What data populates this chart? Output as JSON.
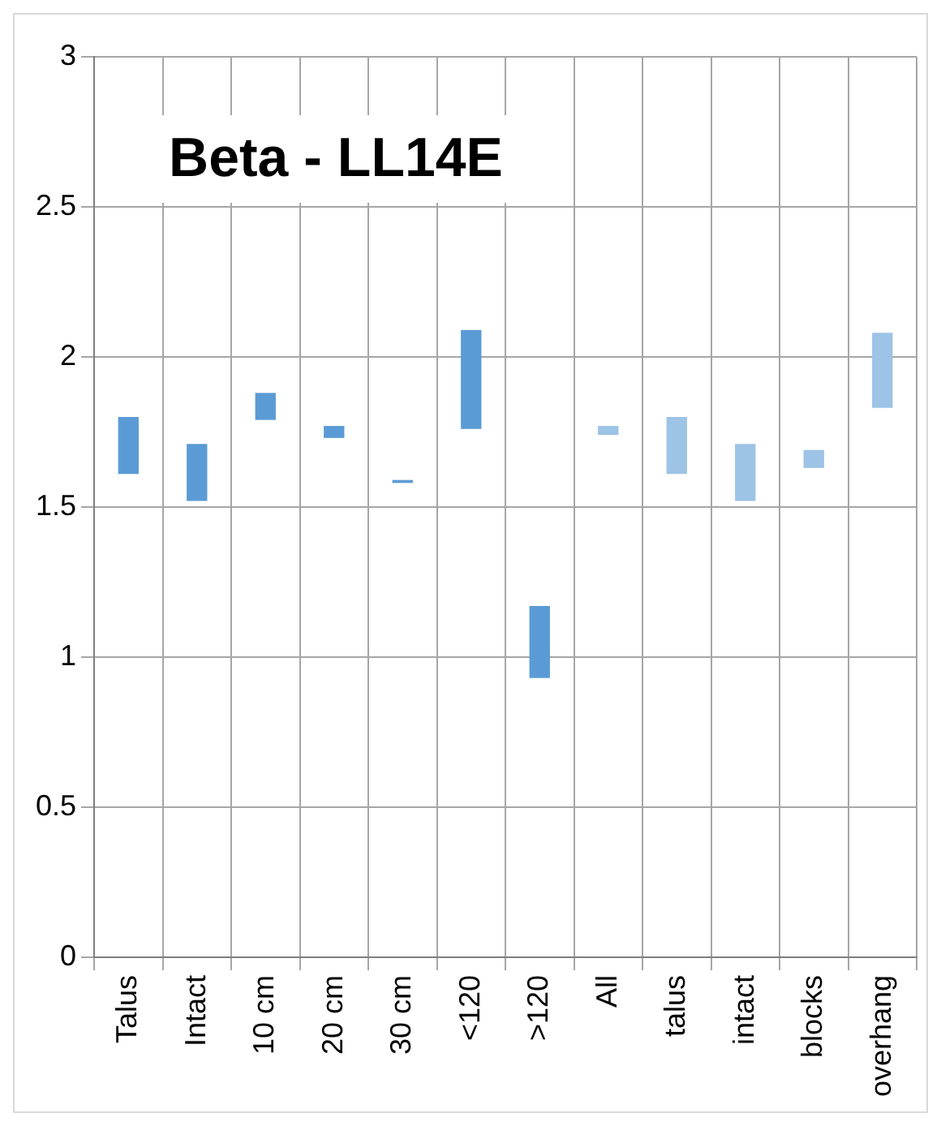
{
  "chart_data": {
    "type": "bar",
    "title": "Beta - LL14E",
    "categories": [
      "Talus",
      "Intact",
      "10 cm",
      "20 cm",
      "30 cm",
      "<120",
      ">120",
      "All",
      "talus",
      "intact",
      "blocks",
      "overhang"
    ],
    "base": [
      1.61,
      1.52,
      1.79,
      1.73,
      1.58,
      1.76,
      0.93,
      1.74,
      1.61,
      1.52,
      1.63,
      1.83
    ],
    "values": [
      0.19,
      0.19,
      0.09,
      0.04,
      0.01,
      0.33,
      0.24,
      0.03,
      0.19,
      0.19,
      0.06,
      0.25
    ],
    "colors": [
      "#5b9bd5",
      "#5b9bd5",
      "#5b9bd5",
      "#5b9bd5",
      "#5b9bd5",
      "#5b9bd5",
      "#5b9bd5",
      "#9dc3e6",
      "#9dc3e6",
      "#9dc3e6",
      "#9dc3e6",
      "#9dc3e6"
    ],
    "ylim": [
      0,
      3
    ],
    "yticks": [
      0,
      0.5,
      1,
      1.5,
      2,
      2.5,
      3
    ],
    "grid": true,
    "legend": false
  }
}
